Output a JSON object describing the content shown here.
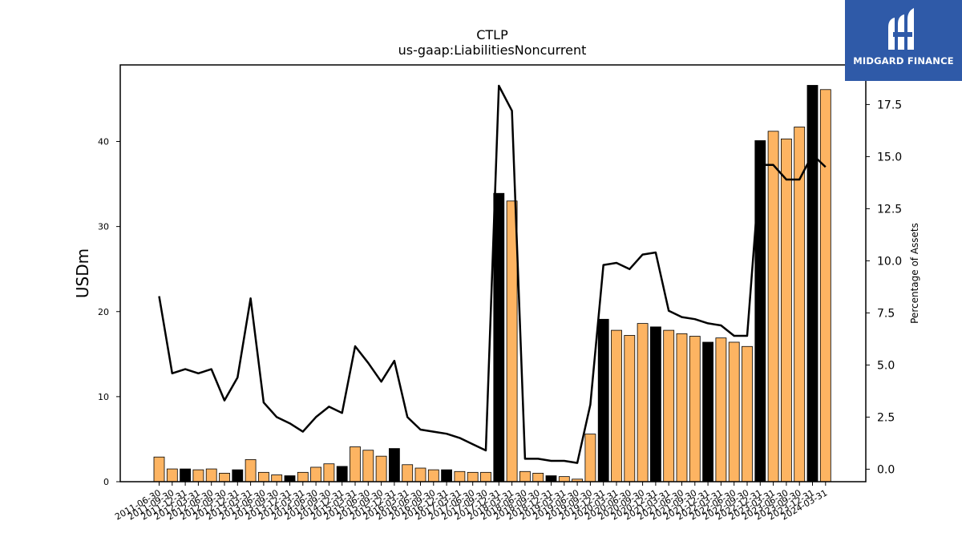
{
  "chart_data": {
    "type": "bar+line",
    "title": "CTLP",
    "subtitle": "us-gaap:LiabilitiesNoncurrent",
    "ylabel": "USDm",
    "ylabel_right": "Percentage of Assets",
    "ylim": [
      0,
      49
    ],
    "ylim_right": [
      -0.6,
      19.4
    ],
    "yticks": [
      0,
      10,
      20,
      30,
      40
    ],
    "yticks_right": [
      "0.0",
      "2.5",
      "5.0",
      "7.5",
      "10.0",
      "12.5",
      "15.0",
      "17.5"
    ],
    "grid": false,
    "colors": {
      "bar": "#fdb462",
      "bar_q4": "#000000",
      "line": "#000000"
    },
    "categories": [
      "2011-06-30",
      "2011-09-30",
      "2011-12-31",
      "2012-03-31",
      "2012-06-30",
      "2012-09-30",
      "2012-12-31",
      "2013-03-31",
      "2013-06-30",
      "2013-09-30",
      "2013-12-31",
      "2014-03-31",
      "2014-06-30",
      "2014-09-30",
      "2014-12-31",
      "2015-03-31",
      "2015-06-30",
      "2015-09-30",
      "2015-12-31",
      "2016-03-31",
      "2016-06-30",
      "2016-09-30",
      "2016-12-31",
      "2017-03-31",
      "2017-06-30",
      "2017-09-30",
      "2017-12-31",
      "2018-03-31",
      "2018-06-30",
      "2018-09-30",
      "2018-12-31",
      "2019-03-31",
      "2019-06-30",
      "2019-09-30",
      "2019-12-31",
      "2020-03-31",
      "2020-06-30",
      "2020-09-30",
      "2020-12-31",
      "2021-03-31",
      "2021-06-30",
      "2021-09-30",
      "2021-12-31",
      "2022-03-31",
      "2022-06-30",
      "2022-09-30",
      "2022-12-31",
      "2023-03-31",
      "2023-06-30",
      "2023-09-30",
      "2023-12-31",
      "2024-03-31"
    ],
    "series": [
      {
        "kind": "bar",
        "values": [
          2.9,
          1.5,
          1.5,
          1.4,
          1.5,
          1.0,
          1.4,
          2.6,
          1.1,
          0.8,
          0.7,
          1.1,
          1.7,
          2.1,
          1.8,
          4.1,
          3.7,
          3.0,
          3.9,
          2.0,
          1.6,
          1.4,
          1.4,
          1.2,
          1.1,
          1.1,
          33.9,
          33.0,
          1.2,
          1.0,
          0.7,
          0.6,
          0.3,
          5.6,
          19.1,
          17.8,
          17.2,
          18.6,
          18.2,
          17.8,
          17.4,
          17.1,
          16.4,
          16.9,
          16.4,
          15.9,
          40.1,
          41.2,
          40.3,
          41.7,
          46.6,
          46.1
        ],
        "q4_flags": [
          false,
          false,
          true,
          false,
          false,
          false,
          true,
          false,
          false,
          false,
          true,
          false,
          false,
          false,
          true,
          false,
          false,
          false,
          true,
          false,
          false,
          false,
          true,
          false,
          false,
          false,
          true,
          false,
          false,
          false,
          true,
          false,
          false,
          false,
          true,
          false,
          false,
          false,
          true,
          false,
          false,
          false,
          true,
          false,
          false,
          false,
          true,
          false,
          false,
          false,
          true,
          false
        ]
      },
      {
        "kind": "line",
        "values": [
          8.3,
          4.6,
          4.8,
          4.6,
          4.8,
          3.3,
          4.4,
          8.2,
          3.2,
          2.5,
          2.2,
          1.8,
          2.5,
          3.0,
          2.7,
          5.9,
          5.1,
          4.2,
          5.2,
          2.5,
          1.9,
          1.8,
          1.7,
          1.5,
          1.2,
          0.9,
          18.4,
          17.2,
          0.5,
          0.5,
          0.4,
          0.4,
          0.3,
          3.1,
          9.8,
          9.9,
          9.6,
          10.3,
          10.4,
          7.6,
          7.3,
          7.2,
          7.0,
          6.9,
          6.4,
          6.4,
          14.6,
          14.6,
          13.9,
          13.9,
          15.1,
          14.5
        ]
      }
    ]
  },
  "logo": {
    "text": "MIDGARD FINANCE",
    "icon": "midgard-logo-icon"
  }
}
